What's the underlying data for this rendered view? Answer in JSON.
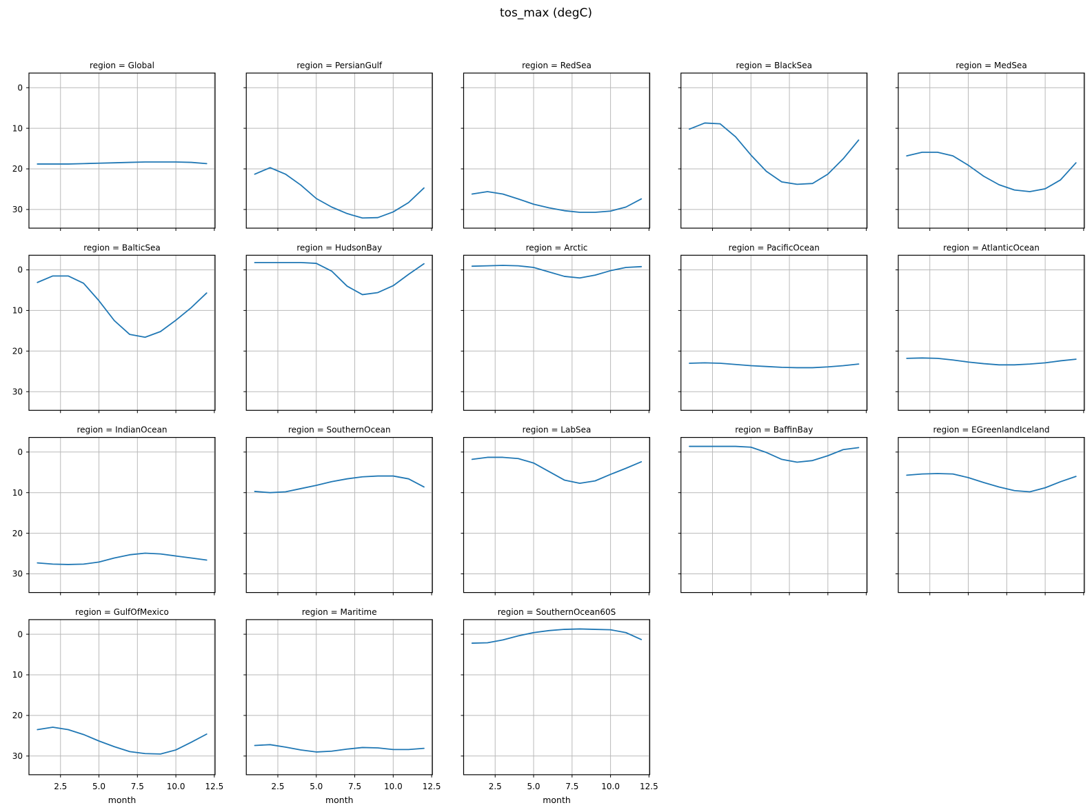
{
  "figure": {
    "title": "tos_max (degC)",
    "background": "#ffffff"
  },
  "chart_data": {
    "type": "line",
    "facet_variable": "region",
    "facet_title_prefix": "region = ",
    "xlabel": "month",
    "x": [
      1,
      2,
      3,
      4,
      5,
      6,
      7,
      8,
      9,
      10,
      11,
      12
    ],
    "xlim": [
      0.45,
      12.55
    ],
    "xticks": [
      2.5,
      5.0,
      7.5,
      10.0,
      12.5
    ],
    "xtick_labels": [
      "2.5",
      "5.0",
      "7.5",
      "10.0",
      "12.5"
    ],
    "yticks": [
      0,
      10,
      20,
      30
    ],
    "ytick_labels": [
      "0",
      "10",
      "20",
      "30"
    ],
    "y_axis_inverted": true,
    "ylim_top_value": -3.6,
    "ylim_bottom_value": 34.6,
    "grid": true,
    "line_color": "#1f77b4",
    "grid_color": "#b9b9b9",
    "spine_color": "#000000",
    "text_color": "#000000",
    "facets": [
      {
        "region": "Global",
        "values": [
          18.8,
          18.8,
          18.8,
          18.7,
          18.6,
          18.5,
          18.4,
          18.3,
          18.3,
          18.3,
          18.4,
          18.7
        ]
      },
      {
        "region": "PersianGulf",
        "values": [
          21.3,
          19.7,
          21.3,
          24.0,
          27.3,
          29.4,
          31.0,
          32.1,
          32.0,
          30.6,
          28.3,
          24.7
        ]
      },
      {
        "region": "RedSea",
        "values": [
          26.2,
          25.6,
          26.2,
          27.4,
          28.7,
          29.6,
          30.3,
          30.7,
          30.7,
          30.4,
          29.4,
          27.4
        ]
      },
      {
        "region": "BlackSea",
        "values": [
          10.2,
          8.7,
          8.9,
          12.1,
          16.6,
          20.6,
          23.2,
          23.8,
          23.6,
          21.3,
          17.5,
          12.9
        ]
      },
      {
        "region": "MedSea",
        "values": [
          16.8,
          15.9,
          15.9,
          16.8,
          19.1,
          21.8,
          23.9,
          25.2,
          25.6,
          24.9,
          22.7,
          18.5
        ]
      },
      {
        "region": "BalticSea",
        "values": [
          3.1,
          1.5,
          1.5,
          3.3,
          7.6,
          12.5,
          15.9,
          16.6,
          15.2,
          12.4,
          9.3,
          5.7
        ]
      },
      {
        "region": "HudsonBay",
        "values": [
          -1.8,
          -1.8,
          -1.8,
          -1.8,
          -1.6,
          0.3,
          4.0,
          6.1,
          5.6,
          3.9,
          1.1,
          -1.5
        ]
      },
      {
        "region": "Arctic",
        "values": [
          -0.9,
          -1.0,
          -1.1,
          -1.0,
          -0.6,
          0.5,
          1.6,
          2.0,
          1.3,
          0.2,
          -0.6,
          -0.8
        ]
      },
      {
        "region": "PacificOcean",
        "values": [
          23.0,
          22.9,
          23.0,
          23.3,
          23.6,
          23.8,
          24.0,
          24.1,
          24.1,
          23.9,
          23.6,
          23.2
        ]
      },
      {
        "region": "AtlanticOcean",
        "values": [
          21.8,
          21.7,
          21.8,
          22.2,
          22.7,
          23.1,
          23.4,
          23.4,
          23.2,
          22.9,
          22.4,
          22.0
        ]
      },
      {
        "region": "IndianOcean",
        "values": [
          27.3,
          27.6,
          27.7,
          27.6,
          27.1,
          26.1,
          25.3,
          24.9,
          25.1,
          25.6,
          26.1,
          26.6
        ]
      },
      {
        "region": "SouthernOcean",
        "values": [
          9.7,
          10.0,
          9.8,
          9.0,
          8.2,
          7.3,
          6.6,
          6.1,
          5.9,
          5.9,
          6.6,
          8.6
        ]
      },
      {
        "region": "LabSea",
        "values": [
          1.8,
          1.3,
          1.3,
          1.6,
          2.7,
          4.8,
          6.9,
          7.7,
          7.1,
          5.5,
          4.0,
          2.4
        ]
      },
      {
        "region": "BaffinBay",
        "values": [
          -1.4,
          -1.4,
          -1.4,
          -1.4,
          -1.2,
          0.1,
          1.8,
          2.5,
          2.1,
          0.9,
          -0.6,
          -1.1
        ]
      },
      {
        "region": "EGreenlandIceland",
        "values": [
          5.7,
          5.4,
          5.3,
          5.4,
          6.3,
          7.5,
          8.6,
          9.5,
          9.8,
          8.8,
          7.3,
          6.0
        ]
      },
      {
        "region": "GulfOfMexico",
        "values": [
          23.5,
          22.9,
          23.5,
          24.7,
          26.3,
          27.7,
          28.9,
          29.4,
          29.5,
          28.5,
          26.6,
          24.6
        ]
      },
      {
        "region": "Maritime",
        "values": [
          27.4,
          27.2,
          27.8,
          28.5,
          29.0,
          28.8,
          28.3,
          27.9,
          28.0,
          28.4,
          28.4,
          28.1
        ]
      },
      {
        "region": "SouthernOcean60S",
        "values": [
          2.2,
          2.1,
          1.4,
          0.4,
          -0.4,
          -0.9,
          -1.2,
          -1.3,
          -1.2,
          -1.1,
          -0.4,
          1.3
        ]
      }
    ]
  }
}
